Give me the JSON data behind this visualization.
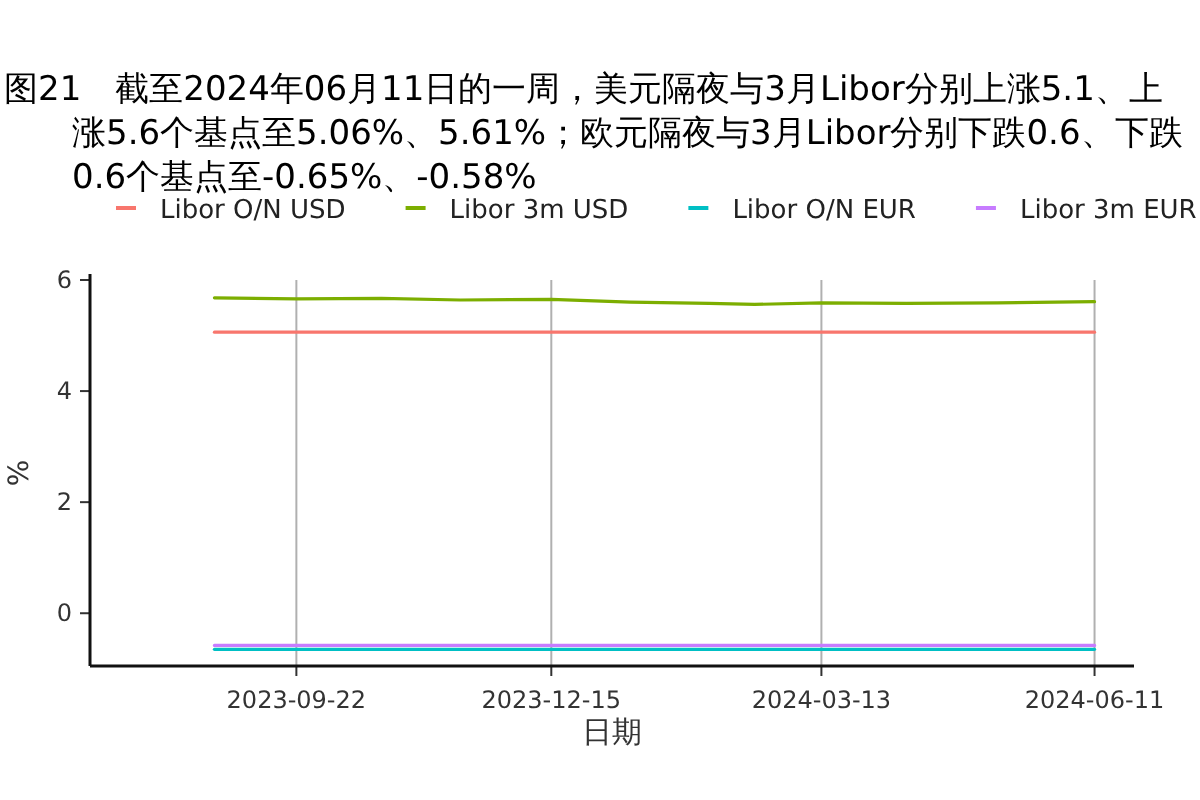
{
  "chart_data": {
    "type": "line",
    "title": "图21　截至2024年06月11日的一周，美元隔夜与3月Libor分别上涨5.1、上涨5.6个基点至5.06%、5.61%；欧元隔夜与3月Libor分别下跌0.6、下跌0.6个基点至-0.65%、-0.58%",
    "xlabel": "日期",
    "ylabel": "%",
    "x": [
      "2023-08-26",
      "2023-09-22",
      "2023-10-20",
      "2023-11-15",
      "2023-12-15",
      "2024-01-10",
      "2024-02-05",
      "2024-02-20",
      "2024-03-13",
      "2024-04-10",
      "2024-05-10",
      "2024-06-11"
    ],
    "series": [
      {
        "name": "Libor O/N USD",
        "color": "#f8766d",
        "values": [
          5.06,
          5.06,
          5.06,
          5.06,
          5.06,
          5.06,
          5.06,
          5.06,
          5.06,
          5.06,
          5.06,
          5.06
        ]
      },
      {
        "name": "Libor 3m USD",
        "color": "#7cae00",
        "values": [
          5.68,
          5.66,
          5.67,
          5.64,
          5.65,
          5.6,
          5.58,
          5.56,
          5.59,
          5.58,
          5.59,
          5.61
        ]
      },
      {
        "name": "Libor O/N EUR",
        "color": "#00bfc4",
        "values": [
          -0.65,
          -0.65,
          -0.65,
          -0.65,
          -0.65,
          -0.65,
          -0.65,
          -0.65,
          -0.65,
          -0.65,
          -0.65,
          -0.65
        ]
      },
      {
        "name": "Libor 3m EUR",
        "color": "#c77cff",
        "values": [
          -0.58,
          -0.58,
          -0.58,
          -0.58,
          -0.58,
          -0.58,
          -0.58,
          -0.58,
          -0.58,
          -0.58,
          -0.58,
          -0.58
        ]
      }
    ],
    "xlim": [
      "2023-07-16",
      "2024-06-24"
    ],
    "ylim": [
      -0.95,
      6
    ],
    "xticks": [
      "2023-09-22",
      "2023-12-15",
      "2024-03-13",
      "2024-06-11"
    ],
    "yticks": [
      0,
      2,
      4,
      6
    ],
    "grid": "x",
    "legend": "top",
    "marker": "none",
    "line_style": "solid"
  }
}
